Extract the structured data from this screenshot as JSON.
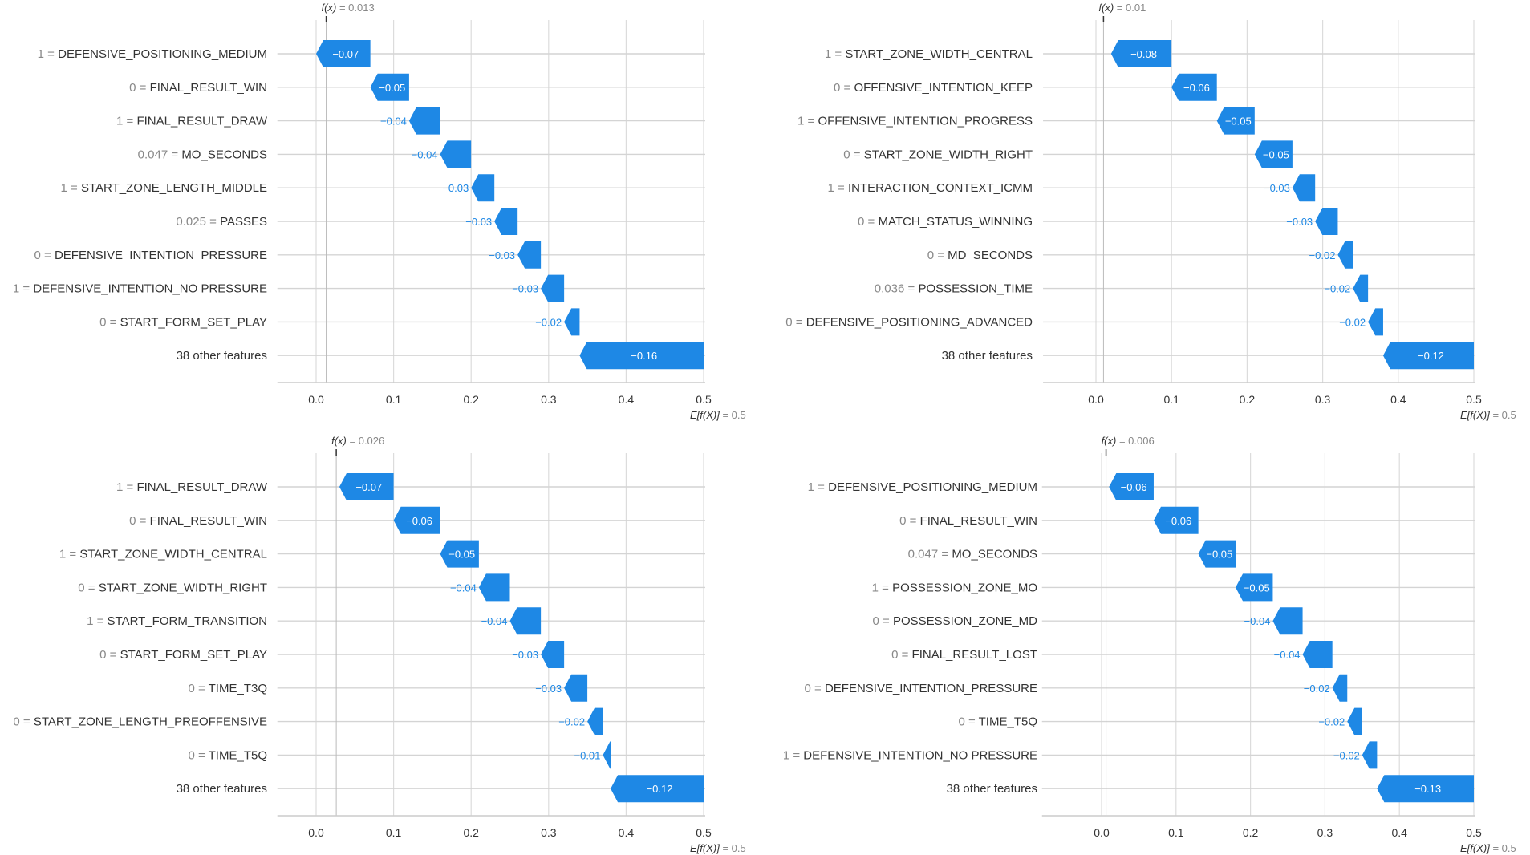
{
  "chart_data": [
    {
      "type": "waterfall",
      "fx_label": "f(x)",
      "fx": 0.013,
      "base_label": "E[f(X)]",
      "base": 0.5,
      "xticks": [
        "0.0",
        "0.1",
        "0.2",
        "0.3",
        "0.4",
        "0.5"
      ],
      "xlim": [
        -0.05,
        0.5
      ],
      "grid": true,
      "color": "#1E88E5",
      "rows": [
        {
          "value": "1",
          "feature": "DEFENSIVE_POSITIONING_MEDIUM",
          "contribution": -0.07
        },
        {
          "value": "0",
          "feature": "FINAL_RESULT_WIN",
          "contribution": -0.05
        },
        {
          "value": "1",
          "feature": "FINAL_RESULT_DRAW",
          "contribution": -0.04
        },
        {
          "value": "0.047",
          "feature": "MO_SECONDS",
          "contribution": -0.04
        },
        {
          "value": "1",
          "feature": "START_ZONE_LENGTH_MIDDLE",
          "contribution": -0.03
        },
        {
          "value": "0.025",
          "feature": "PASSES",
          "contribution": -0.03
        },
        {
          "value": "0",
          "feature": "DEFENSIVE_INTENTION_PRESSURE",
          "contribution": -0.03
        },
        {
          "value": "1",
          "feature": "DEFENSIVE_INTENTION_NO PRESSURE",
          "contribution": -0.03
        },
        {
          "value": "0",
          "feature": "START_FORM_SET_PLAY",
          "contribution": -0.02
        },
        {
          "value": "",
          "feature": "38 other features",
          "contribution": -0.16
        }
      ]
    },
    {
      "type": "waterfall",
      "fx_label": "f(x)",
      "fx": 0.01,
      "base_label": "E[f(X)]",
      "base": 0.5,
      "xticks": [
        "0.0",
        "0.1",
        "0.2",
        "0.3",
        "0.4",
        "0.5"
      ],
      "xlim": [
        -0.07,
        0.5
      ],
      "grid": true,
      "color": "#1E88E5",
      "rows": [
        {
          "value": "1",
          "feature": "START_ZONE_WIDTH_CENTRAL",
          "contribution": -0.08
        },
        {
          "value": "0",
          "feature": "OFFENSIVE_INTENTION_KEEP",
          "contribution": -0.06
        },
        {
          "value": "1",
          "feature": "OFFENSIVE_INTENTION_PROGRESS",
          "contribution": -0.05
        },
        {
          "value": "0",
          "feature": "START_ZONE_WIDTH_RIGHT",
          "contribution": -0.05
        },
        {
          "value": "1",
          "feature": "INTERACTION_CONTEXT_ICMM",
          "contribution": -0.03
        },
        {
          "value": "0",
          "feature": "MATCH_STATUS_WINNING",
          "contribution": -0.03
        },
        {
          "value": "0",
          "feature": "MD_SECONDS",
          "contribution": -0.02
        },
        {
          "value": "0.036",
          "feature": "POSSESSION_TIME",
          "contribution": -0.02
        },
        {
          "value": "0",
          "feature": "DEFENSIVE_POSITIONING_ADVANCED",
          "contribution": -0.02
        },
        {
          "value": "",
          "feature": "38 other features",
          "contribution": -0.12
        }
      ]
    },
    {
      "type": "waterfall",
      "fx_label": "f(x)",
      "fx": 0.026,
      "base_label": "E[f(X)]",
      "base": 0.5,
      "xticks": [
        "0.0",
        "0.1",
        "0.2",
        "0.3",
        "0.4",
        "0.5"
      ],
      "xlim": [
        -0.05,
        0.5
      ],
      "grid": true,
      "color": "#1E88E5",
      "rows": [
        {
          "value": "1",
          "feature": "FINAL_RESULT_DRAW",
          "contribution": -0.07
        },
        {
          "value": "0",
          "feature": "FINAL_RESULT_WIN",
          "contribution": -0.06
        },
        {
          "value": "1",
          "feature": "START_ZONE_WIDTH_CENTRAL",
          "contribution": -0.05
        },
        {
          "value": "0",
          "feature": "START_ZONE_WIDTH_RIGHT",
          "contribution": -0.04
        },
        {
          "value": "1",
          "feature": "START_FORM_TRANSITION",
          "contribution": -0.04
        },
        {
          "value": "0",
          "feature": "START_FORM_SET_PLAY",
          "contribution": -0.03
        },
        {
          "value": "0",
          "feature": "TIME_T3Q",
          "contribution": -0.03
        },
        {
          "value": "0",
          "feature": "START_ZONE_LENGTH_PREOFFENSIVE",
          "contribution": -0.02
        },
        {
          "value": "0",
          "feature": "TIME_T5Q",
          "contribution": -0.01
        },
        {
          "value": "",
          "feature": "38 other features",
          "contribution": -0.12
        }
      ]
    },
    {
      "type": "waterfall",
      "fx_label": "f(x)",
      "fx": 0.006,
      "base_label": "E[f(X)]",
      "base": 0.5,
      "xticks": [
        "0.0",
        "0.1",
        "0.2",
        "0.3",
        "0.4",
        "0.5"
      ],
      "xlim": [
        -0.08,
        0.5
      ],
      "grid": true,
      "color": "#1E88E5",
      "rows": [
        {
          "value": "1",
          "feature": "DEFENSIVE_POSITIONING_MEDIUM",
          "contribution": -0.06
        },
        {
          "value": "0",
          "feature": "FINAL_RESULT_WIN",
          "contribution": -0.06
        },
        {
          "value": "0.047",
          "feature": "MO_SECONDS",
          "contribution": -0.05
        },
        {
          "value": "1",
          "feature": "POSSESSION_ZONE_MO",
          "contribution": -0.05
        },
        {
          "value": "0",
          "feature": "POSSESSION_ZONE_MD",
          "contribution": -0.04
        },
        {
          "value": "0",
          "feature": "FINAL_RESULT_LOST",
          "contribution": -0.04
        },
        {
          "value": "0",
          "feature": "DEFENSIVE_INTENTION_PRESSURE",
          "contribution": -0.02
        },
        {
          "value": "0",
          "feature": "TIME_T5Q",
          "contribution": -0.02
        },
        {
          "value": "1",
          "feature": "DEFENSIVE_INTENTION_NO PRESSURE",
          "contribution": -0.02
        },
        {
          "value": "",
          "feature": "38 other features",
          "contribution": -0.13
        }
      ]
    }
  ]
}
